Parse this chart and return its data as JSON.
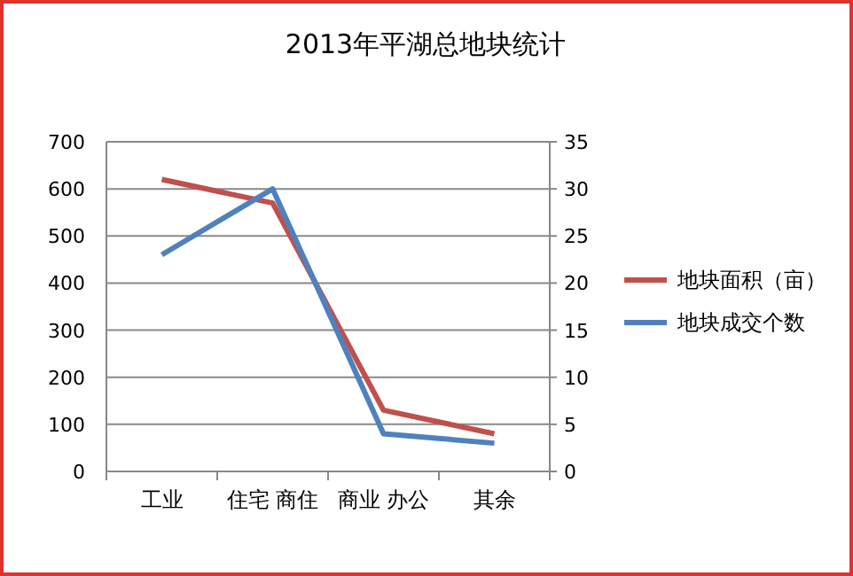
{
  "chart_data": {
    "type": "line",
    "title": "2013年平湖总地块统计",
    "categories": [
      "工业",
      "住宅 商住",
      "商业 办公",
      "其余"
    ],
    "series": [
      {
        "name": "地块面积（亩）",
        "color": "#c0504d",
        "values": [
          620,
          570,
          130,
          80
        ]
      },
      {
        "name": "地块成交个数",
        "color": "#4f81bd",
        "values": [
          23,
          30,
          4,
          3
        ],
        "axis": "y2"
      }
    ],
    "ylim": [
      0,
      700
    ],
    "yticks": [
      0,
      100,
      200,
      300,
      400,
      500,
      600,
      700
    ],
    "y2lim": [
      0,
      35
    ],
    "y2ticks": [
      0,
      5,
      10,
      15,
      20,
      25,
      30,
      35
    ],
    "grid": "y",
    "legend": "right",
    "marker": "none"
  }
}
